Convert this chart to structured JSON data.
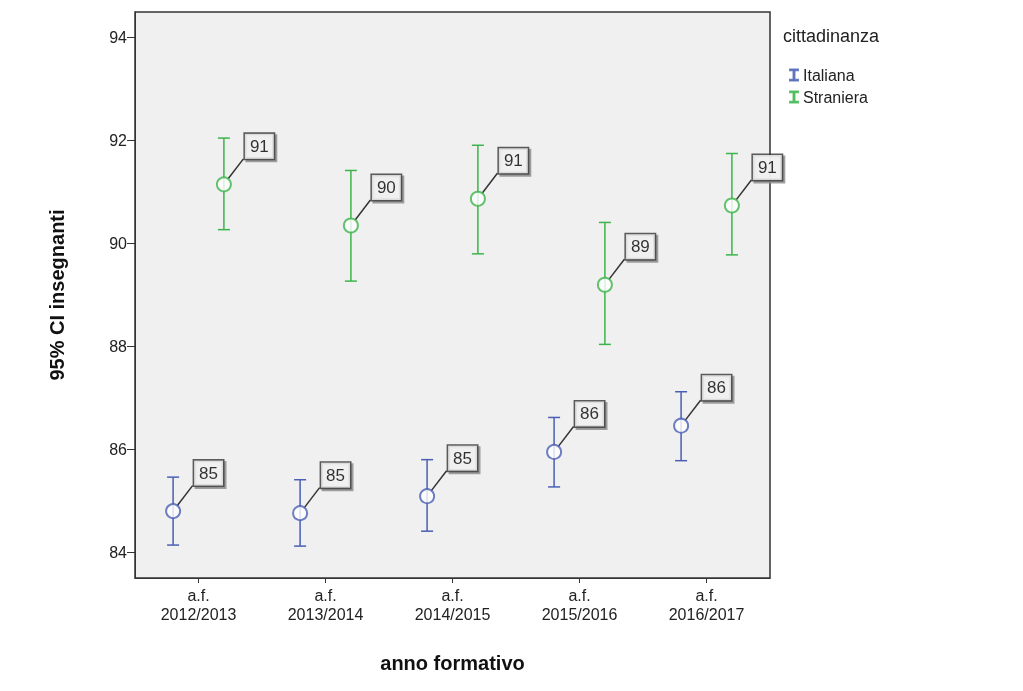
{
  "chart_data": {
    "type": "scatter",
    "xlabel": "anno formativo",
    "ylabel": "95% CI insegnanti",
    "legend_title": "cittadinanza",
    "legend": "top right",
    "marker": "circle",
    "grid": false,
    "categories": [
      "a.f.\n2012/2013",
      "a.f.\n2013/2014",
      "a.f.\n2014/2015",
      "a.f.\n2015/2016",
      "a.f.\n2016/2017"
    ],
    "ylim": [
      83.5,
      94.5
    ],
    "yticks": [
      84,
      86,
      88,
      90,
      92,
      94
    ],
    "series": [
      {
        "name": "Italiana",
        "color": "#4a5fb4",
        "values": [
          84.8,
          84.76,
          85.09,
          85.95,
          86.46
        ],
        "errors": [
          [
            84.14,
            85.46
          ],
          [
            84.12,
            85.41
          ],
          [
            84.41,
            85.8
          ],
          [
            85.27,
            86.62
          ],
          [
            85.78,
            87.12
          ]
        ],
        "value_labels": [
          "85",
          "85",
          "85",
          "86",
          "86"
        ]
      },
      {
        "name": "Straniera",
        "color": "#3cb44b",
        "values": [
          91.15,
          90.35,
          90.87,
          89.2,
          90.74
        ],
        "errors": [
          [
            90.27,
            92.05
          ],
          [
            89.27,
            91.42
          ],
          [
            89.8,
            91.91
          ],
          [
            88.04,
            90.41
          ],
          [
            89.78,
            91.75
          ]
        ],
        "value_labels": [
          "91",
          "90",
          "91",
          "89",
          "91"
        ]
      }
    ]
  }
}
